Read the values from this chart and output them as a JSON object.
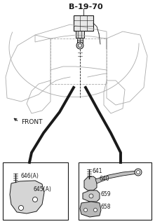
{
  "title": "B-19-70",
  "front_label": "FRONT",
  "bg_color": "#ffffff",
  "line_color": "#1a1a1a",
  "body_color": "#aaaaaa",
  "body_lw": 0.6,
  "box1_labels": [
    "646(A)",
    "645(A)"
  ],
  "box2_labels": [
    "641",
    "640",
    "659",
    "658"
  ],
  "title_fontsize": 8,
  "label_fontsize": 5.5,
  "front_fontsize": 6.5
}
